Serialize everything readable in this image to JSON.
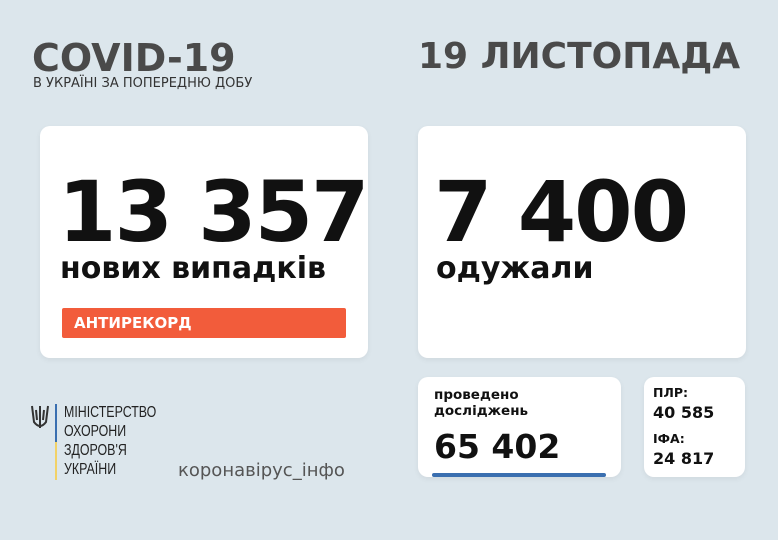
{
  "header": {
    "title": "COVID-19",
    "subtitle": "В УКРАЇНІ ЗА ПОПЕРЕДНЮ ДОБУ",
    "date": "19 ЛИСТОПАДА"
  },
  "new_cases": {
    "value": "13 357",
    "label": "нових випадків",
    "badge": "АНТИРЕКОРД"
  },
  "recovered": {
    "value": "7 400",
    "label": "одужали"
  },
  "tests": {
    "label_line1": "проведено",
    "label_line2": "досліджень",
    "value": "65 402"
  },
  "breakdown": {
    "pcr_label": "ПЛР:",
    "pcr_value": "40 585",
    "ifa_label": "ІФА:",
    "ifa_value": "24 817"
  },
  "ministry": {
    "lines": [
      "МІНІСТЕРСТВО",
      "ОХОРОНИ",
      "ЗДОРОВ'Я",
      "УКРАЇНИ"
    ],
    "icon": "trident-icon"
  },
  "hashtag": "коронавірус_інфо",
  "colors": {
    "accent": "#f25c3b",
    "bar": "#3a6fb0",
    "background": "#dce6ec"
  }
}
